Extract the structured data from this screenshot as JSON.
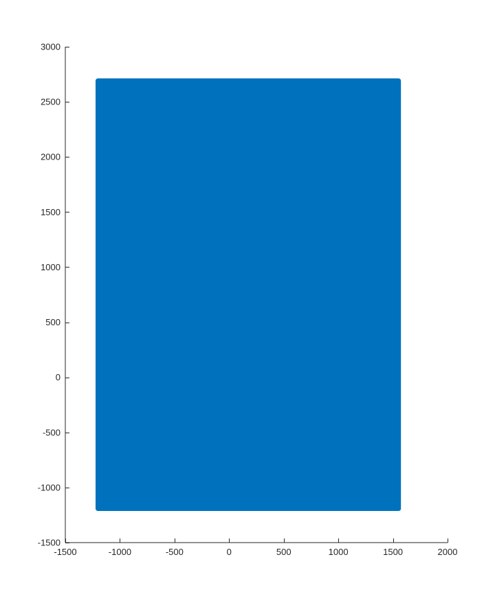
{
  "chart_data": {
    "type": "scatter",
    "title": "",
    "xlabel": "",
    "ylabel": "",
    "xlim": [
      -1500,
      2000
    ],
    "ylim": [
      -1500,
      3000
    ],
    "x_ticks": [
      -1500,
      -1000,
      -500,
      0,
      500,
      1000,
      1500,
      2000
    ],
    "y_ticks": [
      -1500,
      -1000,
      -500,
      0,
      500,
      1000,
      1500,
      2000,
      2500,
      3000
    ],
    "grid": false,
    "legend": "none",
    "series": [
      {
        "color": "#0072bd",
        "marker": "filled-circle",
        "points_region": {
          "x_min": -1220,
          "x_max": 1570,
          "y_min": -1210,
          "y_max": 2710
        }
      }
    ]
  }
}
